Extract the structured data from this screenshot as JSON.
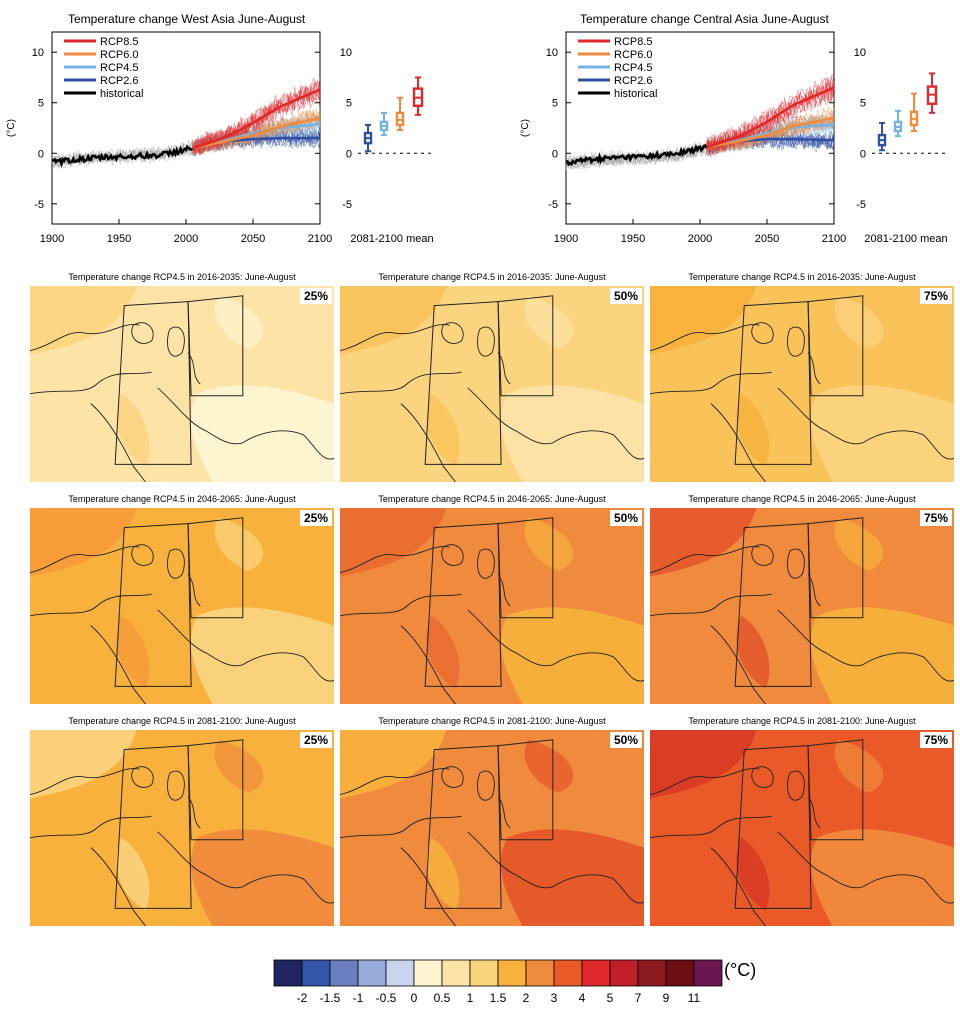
{
  "timeseries": [
    {
      "title": "Temperature change West Asia June-August",
      "ylabel": "(°C)"
    },
    {
      "title": "Temperature change Central Asia June-August",
      "ylabel": "(°C)"
    }
  ],
  "chart_data": {
    "type": "line",
    "panels": [
      {
        "title": "Temperature change West Asia June-August",
        "ylabel": "(°C)",
        "xlim": [
          1900,
          2100
        ],
        "ylim": [
          -7,
          12
        ],
        "xticks": [
          "1900",
          "1950",
          "2000",
          "2050",
          "2100"
        ],
        "yticks": [
          "10",
          "5",
          "0",
          "-5"
        ],
        "legend": [
          "RCP8.5",
          "RCP6.0",
          "RCP4.5",
          "RCP2.6",
          "historical"
        ],
        "series": [
          {
            "name": "historical",
            "x": [
              1900,
              1920,
              1940,
              1960,
              1980,
              2005
            ],
            "y": [
              -0.9,
              -0.6,
              -0.4,
              -0.3,
              -0.2,
              0.5
            ]
          },
          {
            "name": "RCP2.6",
            "x": [
              2005,
              2030,
              2050,
              2070,
              2100
            ],
            "y": [
              0.5,
              1.2,
              1.4,
              1.5,
              1.5
            ]
          },
          {
            "name": "RCP4.5",
            "x": [
              2005,
              2030,
              2050,
              2070,
              2100
            ],
            "y": [
              0.5,
              1.3,
              2.0,
              2.5,
              2.9
            ]
          },
          {
            "name": "RCP6.0",
            "x": [
              2005,
              2030,
              2050,
              2070,
              2100
            ],
            "y": [
              0.5,
              1.2,
              1.8,
              2.6,
              3.5
            ]
          },
          {
            "name": "RCP8.5",
            "x": [
              2005,
              2030,
              2050,
              2070,
              2100
            ],
            "y": [
              0.5,
              1.6,
              3.0,
              4.6,
              6.3
            ]
          }
        ],
        "boxplot_label": "2081-2100 mean",
        "boxplots": [
          {
            "name": "RCP2.6",
            "min": 0.2,
            "q1": 1.0,
            "median": 1.5,
            "q3": 2.0,
            "max": 2.8
          },
          {
            "name": "RCP4.5",
            "min": 1.8,
            "q1": 2.3,
            "median": 2.7,
            "q3": 3.1,
            "max": 4.0
          },
          {
            "name": "RCP6.0",
            "min": 2.3,
            "q1": 2.8,
            "median": 3.3,
            "q3": 4.0,
            "max": 5.5
          },
          {
            "name": "RCP8.5",
            "min": 3.8,
            "q1": 4.7,
            "median": 5.5,
            "q3": 6.4,
            "max": 7.5
          }
        ]
      },
      {
        "title": "Temperature change Central Asia June-August",
        "ylabel": "(°C)",
        "xlim": [
          1900,
          2100
        ],
        "ylim": [
          -7,
          12
        ],
        "xticks": [
          "1900",
          "1950",
          "2000",
          "2050",
          "2100"
        ],
        "yticks": [
          "10",
          "5",
          "0",
          "-5"
        ],
        "legend": [
          "RCP8.5",
          "RCP6.0",
          "RCP4.5",
          "RCP2.6",
          "historical"
        ],
        "series": [
          {
            "name": "historical",
            "x": [
              1900,
              1920,
              1940,
              1960,
              1980,
              2005
            ],
            "y": [
              -0.9,
              -0.6,
              -0.4,
              -0.3,
              -0.1,
              0.6
            ]
          },
          {
            "name": "RCP2.6",
            "x": [
              2005,
              2030,
              2050,
              2070,
              2100
            ],
            "y": [
              0.6,
              1.2,
              1.4,
              1.4,
              1.3
            ]
          },
          {
            "name": "RCP4.5",
            "x": [
              2005,
              2030,
              2050,
              2070,
              2100
            ],
            "y": [
              0.6,
              1.3,
              2.0,
              2.6,
              2.8
            ]
          },
          {
            "name": "RCP6.0",
            "x": [
              2005,
              2030,
              2050,
              2070,
              2100
            ],
            "y": [
              0.6,
              1.2,
              1.8,
              2.7,
              3.5
            ]
          },
          {
            "name": "RCP8.5",
            "x": [
              2005,
              2030,
              2050,
              2070,
              2100
            ],
            "y": [
              0.6,
              1.7,
              3.1,
              4.8,
              6.5
            ]
          }
        ],
        "boxplot_label": "2081-2100 mean",
        "boxplots": [
          {
            "name": "RCP2.6",
            "min": 0.3,
            "q1": 0.8,
            "median": 1.3,
            "q3": 1.8,
            "max": 3.0
          },
          {
            "name": "RCP4.5",
            "min": 1.7,
            "q1": 2.2,
            "median": 2.6,
            "q3": 3.1,
            "max": 4.2
          },
          {
            "name": "RCP6.0",
            "min": 2.2,
            "q1": 2.8,
            "median": 3.4,
            "q3": 4.1,
            "max": 5.9
          },
          {
            "name": "RCP8.5",
            "min": 4.0,
            "q1": 4.9,
            "median": 5.8,
            "q3": 6.6,
            "max": 7.9
          }
        ]
      }
    ],
    "colors": {
      "RCP8.5": "#e0282b",
      "RCP6.0": "#f08a3c",
      "RCP4.5": "#74b4e4",
      "RCP2.6": "#2f4fa3",
      "historical": "#000000"
    }
  },
  "maps": [
    {
      "title": "Temperature change RCP4.5 in 2016-2035: June-August",
      "percentile": "25%",
      "base": "#fde3a6",
      "patches": [
        "#fdf4d2",
        "#fbd480"
      ]
    },
    {
      "title": "Temperature change RCP4.5 in 2016-2035: June-August",
      "percentile": "50%",
      "base": "#fbd480",
      "patches": [
        "#fde3a6",
        "#f9c35a"
      ]
    },
    {
      "title": "Temperature change RCP4.5 in 2016-2035: June-August",
      "percentile": "75%",
      "base": "#f9c35a",
      "patches": [
        "#fbd480",
        "#f7b13c"
      ]
    },
    {
      "title": "Temperature change RCP4.5 in 2046-2065: June-August",
      "percentile": "25%",
      "base": "#f7b13c",
      "patches": [
        "#fbd480",
        "#f59b3a"
      ]
    },
    {
      "title": "Temperature change RCP4.5 in 2046-2065: June-August",
      "percentile": "50%",
      "base": "#f08a3c",
      "patches": [
        "#f7b13c",
        "#ea6a30"
      ]
    },
    {
      "title": "Temperature change RCP4.5 in 2046-2065: June-August",
      "percentile": "75%",
      "base": "#f08a3c",
      "patches": [
        "#f7b13c",
        "#e4562a"
      ]
    },
    {
      "title": "Temperature change RCP4.5 in 2081-2100: June-August",
      "percentile": "25%",
      "base": "#f7b13c",
      "patches": [
        "#f08a3c",
        "#fbd480"
      ]
    },
    {
      "title": "Temperature change RCP4.5 in 2081-2100: June-August",
      "percentile": "50%",
      "base": "#f08a3c",
      "patches": [
        "#e4562a",
        "#f7b13c"
      ]
    },
    {
      "title": "Temperature change RCP4.5 in 2081-2100: June-August",
      "percentile": "75%",
      "base": "#ea5a28",
      "patches": [
        "#f08a3c",
        "#d93a24"
      ]
    }
  ],
  "colorbar": {
    "unit": "(°C)",
    "colors": [
      "#20255f",
      "#3456a8",
      "#6a7fc0",
      "#98aad8",
      "#c9d4ee",
      "#fdf4d2",
      "#fde3a6",
      "#fbd480",
      "#f7b13c",
      "#f08a3c",
      "#ea5a28",
      "#e0282b",
      "#c01f2a",
      "#8c1a1f",
      "#6b0d12",
      "#6a1650"
    ],
    "labels": [
      "-2",
      "-1.5",
      "-1",
      "-0.5",
      "0",
      "0.5",
      "1",
      "1.5",
      "2",
      "3",
      "4",
      "5",
      "7",
      "9",
      "11"
    ]
  }
}
